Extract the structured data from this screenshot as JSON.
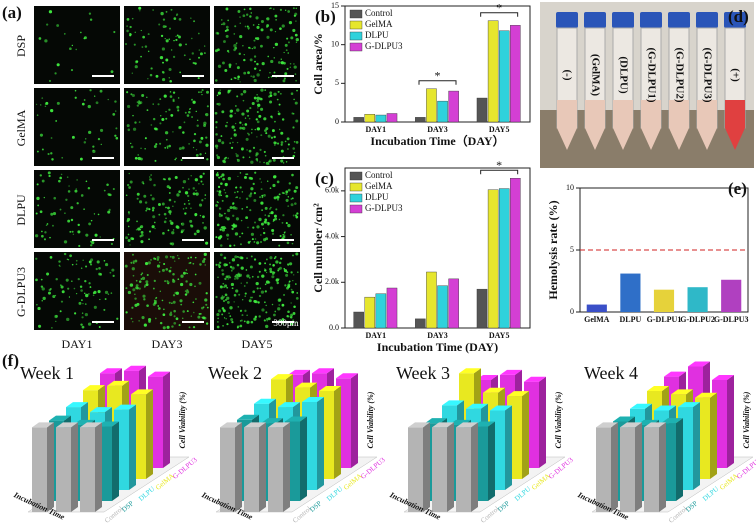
{
  "panels": {
    "a": {
      "label": "(a)",
      "rows": [
        "DSP",
        "GelMA",
        "DLPU",
        "G-DLPU3"
      ],
      "columns": [
        "DAY1",
        "DAY3",
        "DAY5"
      ],
      "scale": "300μm"
    },
    "d": {
      "label": "(d)",
      "tubes": [
        "(-)",
        "(GelMA)",
        "(DLPU)",
        "(G-DLPU1)",
        "(G-DLPU2)",
        "(G-DLPU3)",
        "(+)"
      ]
    },
    "f": {
      "label": "(f)"
    }
  },
  "chart_data": [
    {
      "type": "bar",
      "title": "(b)",
      "xlabel": "Incubation Time（DAY）",
      "ylabel": "Cell area/%",
      "categories": [
        "DAY1",
        "DAY3",
        "DAY5"
      ],
      "series": [
        {
          "name": "Control",
          "color": "#555555",
          "values": [
            0.6,
            0.6,
            3.1
          ]
        },
        {
          "name": "GelMA",
          "color": "#e6e62e",
          "values": [
            1.0,
            4.3,
            13.1
          ]
        },
        {
          "name": "DLPU",
          "color": "#2fd2dc",
          "values": [
            0.9,
            2.7,
            11.8
          ]
        },
        {
          "name": "G-DLPU3",
          "color": "#d43fd4",
          "values": [
            1.1,
            4.0,
            12.5
          ]
        }
      ],
      "ylim": [
        0,
        15
      ],
      "yticks": [
        0,
        5,
        10,
        15
      ],
      "annotations": [
        "*",
        "*"
      ]
    },
    {
      "type": "bar",
      "title": "(c)",
      "xlabel": "Incubation Time (DAY)",
      "ylabel": "Cell number /cm²",
      "categories": [
        "DAY1",
        "DAY3",
        "DAY5"
      ],
      "series": [
        {
          "name": "Control",
          "color": "#555555",
          "values": [
            700,
            400,
            1700
          ]
        },
        {
          "name": "GelMA",
          "color": "#e6e62e",
          "values": [
            1350,
            2450,
            6050
          ]
        },
        {
          "name": "DLPU",
          "color": "#2fd2dc",
          "values": [
            1500,
            1850,
            6100
          ]
        },
        {
          "name": "G-DLPU3",
          "color": "#d43fd4",
          "values": [
            1750,
            2150,
            6550
          ]
        }
      ],
      "ylim": [
        0,
        7000
      ],
      "yticks": [
        {
          "value": 0,
          "label": "0.0"
        },
        {
          "value": 2000,
          "label": "2.0k"
        },
        {
          "value": 4000,
          "label": "4.0k"
        },
        {
          "value": 6000,
          "label": "6.0k"
        }
      ],
      "annotations": [
        "*"
      ]
    },
    {
      "type": "bar",
      "title": "(e)",
      "ylabel": "Hemolysis rate (%)",
      "categories": [
        "GelMA",
        "DLPU",
        "G-DLPU1",
        "G-DLPU2",
        "G-DLPU3"
      ],
      "values": [
        0.6,
        3.1,
        1.8,
        2.0,
        2.6
      ],
      "colors": [
        "#3a4fc8",
        "#2f6fc8",
        "#e6d23a",
        "#2fb8c8",
        "#b040c0"
      ],
      "ylim": [
        0,
        10
      ],
      "yticks": [
        0,
        5,
        10
      ],
      "reference_line": 5
    },
    {
      "type": "bar3d",
      "title": "Week 1",
      "xlabel": "Incubation Time",
      "ylabel": "Cell Viability (%)",
      "categories": [
        null,
        null,
        null
      ],
      "ylim": [
        0,
        130
      ],
      "series": [
        {
          "name": "Control",
          "color": "#b4b4b4",
          "values": [
            100,
            100,
            100
          ]
        },
        {
          "name": "DSP",
          "color": "#1a9a9a",
          "values": [
            95,
            90,
            88
          ]
        },
        {
          "name": "DLPU",
          "color": "#30d8e0",
          "values": [
            98,
            92,
            95
          ]
        },
        {
          "name": "GelMA",
          "color": "#e8e820",
          "values": [
            105,
            110,
            100
          ]
        },
        {
          "name": "G-DLPU3",
          "color": "#e030e0",
          "values": [
            112,
            115,
            108
          ]
        }
      ]
    },
    {
      "type": "bar3d",
      "title": "Week 2",
      "xlabel": "Incubation Time",
      "ylabel": "Cell Viability (%)",
      "categories": [
        null,
        null,
        null
      ],
      "ylim": [
        0,
        130
      ],
      "series": [
        {
          "name": "Control",
          "color": "#b4b4b4",
          "values": [
            100,
            100,
            100
          ]
        },
        {
          "name": "DSP",
          "color": "#1a9a9a",
          "values": [
            96,
            92,
            94
          ]
        },
        {
          "name": "DLPU",
          "color": "#30d8e0",
          "values": [
            102,
            98,
            104
          ]
        },
        {
          "name": "GelMA",
          "color": "#e8e820",
          "values": [
            118,
            108,
            104
          ]
        },
        {
          "name": "G-DLPU3",
          "color": "#e030e0",
          "values": [
            110,
            112,
            106
          ]
        }
      ]
    },
    {
      "type": "bar3d",
      "title": "Week 3",
      "xlabel": "Incubation Time",
      "ylabel": "Cell Viability (%)",
      "categories": [
        null,
        null,
        null
      ],
      "ylim": [
        0,
        130
      ],
      "series": [
        {
          "name": "Control",
          "color": "#b4b4b4",
          "values": [
            100,
            100,
            100
          ]
        },
        {
          "name": "DSP",
          "color": "#1a9a9a",
          "values": [
            92,
            90,
            88
          ]
        },
        {
          "name": "DLPU",
          "color": "#30d8e0",
          "values": [
            100,
            96,
            94
          ]
        },
        {
          "name": "GelMA",
          "color": "#e8e820",
          "values": [
            125,
            102,
            98
          ]
        },
        {
          "name": "G-DLPU3",
          "color": "#e030e0",
          "values": [
            104,
            110,
            102
          ]
        }
      ]
    },
    {
      "type": "bar3d",
      "title": "Week 4",
      "xlabel": "Incubation Time",
      "ylabel": "Cell Viability (%)",
      "categories": [
        null,
        null,
        null
      ],
      "ylim": [
        0,
        130
      ],
      "series": [
        {
          "name": "Control",
          "color": "#b4b4b4",
          "values": [
            100,
            100,
            100
          ]
        },
        {
          "name": "DSP",
          "color": "#1a9a9a",
          "values": [
            94,
            90,
            92
          ]
        },
        {
          "name": "DLPU",
          "color": "#30d8e0",
          "values": [
            96,
            94,
            98
          ]
        },
        {
          "name": "GelMA",
          "color": "#e8e820",
          "values": [
            104,
            100,
            96
          ]
        },
        {
          "name": "G-DLPU3",
          "color": "#e030e0",
          "values": [
            108,
            120,
            104
          ]
        }
      ]
    }
  ]
}
